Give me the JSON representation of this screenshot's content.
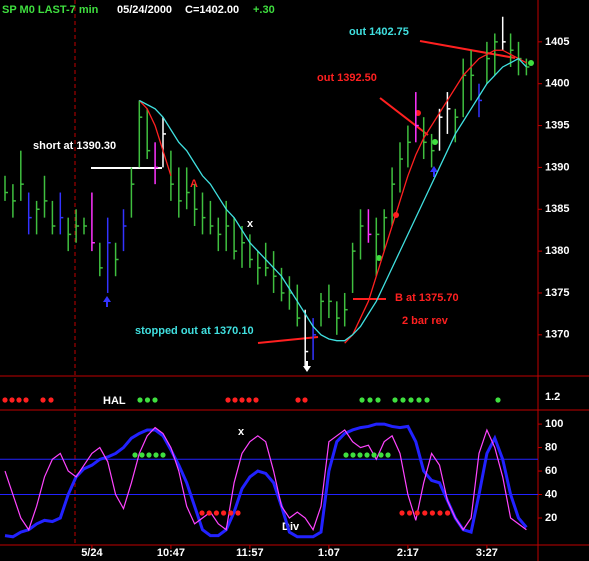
{
  "header": {
    "symbol": "SP M0 LAST-7 min",
    "date": "05/24/2000",
    "close": "C=1402.00",
    "change": "+.30"
  },
  "chart_data": {
    "type": "ohlc",
    "categories": [
      null,
      null,
      null,
      null,
      null,
      null,
      null,
      null,
      null,
      null,
      null,
      "5/24",
      null,
      null,
      null,
      null,
      null,
      null,
      null,
      null,
      null,
      "10:47",
      null,
      null,
      null,
      null,
      null,
      null,
      null,
      null,
      null,
      "11:57",
      null,
      null,
      null,
      null,
      null,
      null,
      null,
      null,
      null,
      "1:07",
      null,
      null,
      null,
      null,
      null,
      null,
      null,
      null,
      null,
      "2:17",
      null,
      null,
      null,
      null,
      null,
      null,
      null,
      null,
      null,
      "3:27",
      null,
      null,
      null,
      null,
      null
    ],
    "high": [
      1389,
      1388,
      1392,
      1387,
      1386,
      1389,
      1386,
      1387,
      1384,
      1385,
      1384,
      1387,
      1381,
      1384,
      1381,
      1385,
      1390,
      1398,
      1397,
      1393,
      1396,
      1392,
      1390,
      1390,
      1388,
      1387,
      1386,
      1384,
      1386,
      1384,
      1383,
      1382,
      1380,
      1381,
      1380,
      1378,
      1377,
      1376,
      1373,
      1372,
      1375,
      1376,
      1374,
      1375,
      1381,
      1385,
      1385,
      1384,
      1385,
      1390,
      1393,
      1395,
      1399,
      1396,
      1394,
      1397,
      1399,
      1397,
      1403,
      1404,
      1400,
      1405,
      1406,
      1408,
      1406,
      1405,
      1403
    ],
    "low": [
      1386,
      1384,
      1386,
      1382,
      1382,
      1384,
      1382,
      1382,
      1380,
      1381,
      1382,
      1380,
      1377,
      1375,
      1377,
      1380,
      1384,
      1390,
      1391,
      1388,
      1390,
      1386,
      1384,
      1385,
      1383,
      1382,
      1382,
      1380,
      1380,
      1379,
      1378,
      1378,
      1376,
      1377,
      1375,
      1374,
      1373,
      1371,
      1366,
      1367,
      1371,
      1372,
      1370,
      1371,
      1375,
      1379,
      1381,
      1377,
      1380,
      1383,
      1387,
      1390,
      1393,
      1391,
      1390,
      1392,
      1394,
      1393,
      1396,
      1398,
      1396,
      1400,
      1401,
      1404,
      1402,
      1401,
      1401
    ],
    "close": [
      1387,
      1386,
      1388,
      1384,
      1385,
      1386,
      1383,
      1384,
      1382,
      1383,
      1383,
      1381,
      1378,
      1381,
      1379,
      1383,
      1388,
      1396,
      1392,
      1390,
      1394,
      1388,
      1386,
      1387,
      1385,
      1384,
      1383,
      1382,
      1383,
      1380,
      1381,
      1379,
      1378,
      1378,
      1377,
      1375,
      1375,
      1372,
      1368,
      1370,
      1374,
      1374,
      1372,
      1373,
      1380,
      1383,
      1382,
      1382,
      1384,
      1388,
      1391,
      1393,
      1395,
      1393,
      1392,
      1396,
      1397,
      1396,
      1401,
      1401,
      1398,
      1403,
      1405,
      1405,
      1404,
      1403,
      1402
    ],
    "bar_colors": [
      "#3fbf3f",
      "#3fbf3f",
      "#3fbf3f",
      "#3333ff",
      "#3fbf3f",
      "#3fbf3f",
      "#3fbf3f",
      "#3333ff",
      "#3fbf3f",
      "#3fbf3f",
      "#3fbf3f",
      "#ff33ff",
      "#3fbf3f",
      "#3333ff",
      "#3fbf3f",
      "#3333ff",
      "#3fbf3f",
      "#3fbf3f",
      "#3fbf3f",
      "#ff33ff",
      "#ffffff",
      "#3fbf3f",
      "#3fbf3f",
      "#3fbf3f",
      "#3fbf3f",
      "#3fbf3f",
      "#3fbf3f",
      "#3fbf3f",
      "#3fbf3f",
      "#3fbf3f",
      "#3fbf3f",
      "#3fbf3f",
      "#3fbf3f",
      "#3fbf3f",
      "#3fbf3f",
      "#3fbf3f",
      "#3fbf3f",
      "#3fbf3f",
      "#ffffff",
      "#3333ff",
      "#3fbf3f",
      "#3fbf3f",
      "#3fbf3f",
      "#3fbf3f",
      "#3fbf3f",
      "#3fbf3f",
      "#ff33ff",
      "#3fbf3f",
      "#3fbf3f",
      "#3fbf3f",
      "#3fbf3f",
      "#3fbf3f",
      "#ff33ff",
      "#3fbf3f",
      "#3fbf3f",
      "#ffffff",
      "#ffffff",
      "#3fbf3f",
      "#3fbf3f",
      "#3fbf3f",
      "#3333ff",
      "#3fbf3f",
      "#3fbf3f",
      "#ffffff",
      "#3fbf3f",
      "#3fbf3f",
      "#3fbf3f"
    ],
    "series": [
      {
        "color": "#ff2020",
        "values": [
          null,
          null,
          null,
          null,
          null,
          null,
          null,
          null,
          null,
          null,
          null,
          null,
          null,
          null,
          null,
          null,
          null,
          1398,
          1397,
          1395,
          1392,
          1389,
          null,
          null,
          null,
          null,
          null,
          null,
          null,
          null,
          null,
          null,
          null,
          null,
          null,
          null,
          null,
          null,
          null,
          null,
          null,
          null,
          null,
          1369,
          1370,
          1372,
          1374,
          1377,
          1380,
          1383,
          1386,
          1389,
          1391.5,
          1393.5,
          1395,
          1396.5,
          1398,
          1399.5,
          1401,
          1402,
          1403,
          1403.5,
          1404,
          1404,
          1403.5,
          1403,
          1402.5
        ]
      },
      {
        "color": "#40e0e0",
        "values": [
          null,
          null,
          null,
          null,
          null,
          null,
          null,
          null,
          null,
          null,
          null,
          null,
          null,
          null,
          null,
          null,
          null,
          1398,
          1397.5,
          1397,
          1396,
          1394.5,
          1393,
          1392,
          1390.5,
          1389,
          1388,
          1386.5,
          1385,
          1384,
          1382.5,
          1381,
          1380,
          1379,
          1378,
          1377,
          1375.5,
          1374,
          1372.5,
          1371,
          1370,
          1369.5,
          1369.3,
          1369.3,
          1370,
          1371,
          1372.5,
          1374,
          1376,
          1378,
          1380,
          1382,
          1384,
          1386,
          1388,
          1390,
          1392,
          1394,
          1395.5,
          1397,
          1398.5,
          1400,
          1401,
          1402,
          1402.5,
          1403,
          1402
        ]
      }
    ],
    "ylim": [
      1365.2,
      1410
    ],
    "yticks": [
      1370,
      1375,
      1380,
      1385,
      1390,
      1395,
      1400,
      1405
    ],
    "annotations": {
      "short": "short at 1390.30",
      "a": "A",
      "x1": "x",
      "stopped": "stopped out at 1370.10",
      "out1": "out 1392.50",
      "out2": "out 1402.75",
      "b": "B at 1375.70",
      "rev": "2 bar rev",
      "hal": "HAL",
      "x2": "x",
      "div": "Div"
    },
    "hal_ticks": [
      1.2
    ],
    "oscillator": {
      "series": [
        {
          "color": "#2222ff",
          "values": [
            5,
            4,
            8,
            10,
            15,
            18,
            17,
            20,
            40,
            55,
            62,
            65,
            70,
            72,
            75,
            80,
            88,
            92,
            95,
            95,
            90,
            78,
            65,
            50,
            30,
            10,
            5,
            5,
            10,
            25,
            45,
            55,
            60,
            58,
            50,
            30,
            8,
            4,
            4,
            4,
            8,
            60,
            85,
            92,
            95,
            97,
            98,
            100,
            100,
            98,
            97,
            98,
            85,
            60,
            52,
            50,
            35,
            20,
            10,
            8,
            40,
            75,
            88,
            70,
            40,
            20,
            12
          ]
        },
        {
          "color": "#ff44ff",
          "values": [
            60,
            40,
            20,
            10,
            30,
            55,
            70,
            75,
            60,
            55,
            65,
            75,
            80,
            68,
            40,
            28,
            50,
            75,
            90,
            97,
            92,
            80,
            60,
            30,
            15,
            20,
            25,
            15,
            10,
            50,
            75,
            85,
            90,
            85,
            60,
            30,
            20,
            25,
            20,
            10,
            30,
            85,
            90,
            95,
            85,
            80,
            82,
            70,
            85,
            90,
            75,
            40,
            18,
            50,
            75,
            65,
            35,
            20,
            10,
            20,
            75,
            95,
            80,
            55,
            20,
            15,
            10
          ]
        }
      ],
      "ylim": [
        -3,
        112
      ],
      "yticks": [
        20,
        40,
        60,
        80,
        100
      ],
      "ref_lines": [
        70,
        40
      ]
    }
  }
}
